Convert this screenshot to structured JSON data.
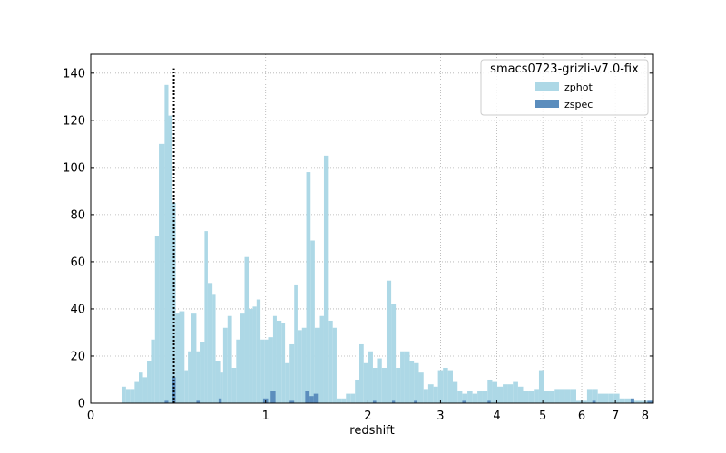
{
  "chart_data": {
    "type": "bar",
    "xlabel": "redshift",
    "ylabel": "",
    "x_scale": "log(1+z)",
    "xlim": [
      0,
      8.3
    ],
    "ylim": [
      0,
      148
    ],
    "x_ticks": [
      0,
      1,
      2,
      3,
      4,
      5,
      6,
      7,
      8
    ],
    "y_ticks": [
      0,
      20,
      40,
      60,
      80,
      100,
      120,
      140
    ],
    "grid": true,
    "legend": {
      "title": "smacs0723-grizli-v7.0-fix",
      "position": "top-right"
    },
    "reference_line": {
      "x": 0.39,
      "style": "dotted",
      "color": "#000000"
    },
    "series": [
      {
        "name": "zphot",
        "color": "#add8e6",
        "x_left": [
          0.13,
          0.15,
          0.17,
          0.19,
          0.21,
          0.23,
          0.25,
          0.27,
          0.29,
          0.31,
          0.34,
          0.36,
          0.38,
          0.4,
          0.42,
          0.45,
          0.47,
          0.49,
          0.52,
          0.54,
          0.57,
          0.59,
          0.62,
          0.64,
          0.67,
          0.69,
          0.72,
          0.75,
          0.78,
          0.81,
          0.84,
          0.87,
          0.9,
          0.93,
          0.96,
          0.99,
          1.02,
          1.06,
          1.09,
          1.13,
          1.16,
          1.2,
          1.24,
          1.27,
          1.31,
          1.35,
          1.39,
          1.43,
          1.48,
          1.52,
          1.56,
          1.61,
          1.65,
          1.7,
          1.75,
          1.8,
          1.85,
          1.9,
          1.95,
          2.0,
          2.06,
          2.11,
          2.17,
          2.23,
          2.29,
          2.35,
          2.41,
          2.47,
          2.54,
          2.6,
          2.67,
          2.74,
          2.81,
          2.89,
          2.96,
          3.04,
          3.12,
          3.2,
          3.28,
          3.36,
          3.45,
          3.54,
          3.63,
          3.72,
          3.82,
          3.91,
          4.01,
          4.12,
          4.22,
          4.33,
          4.44,
          4.55,
          4.67,
          4.79,
          4.91,
          5.03,
          5.16,
          5.29,
          5.42,
          5.56,
          5.7,
          5.85,
          6.0,
          6.15,
          6.3,
          6.46,
          6.62,
          6.79,
          6.96,
          7.13,
          7.31,
          7.5,
          7.68,
          7.88,
          8.08
        ],
        "x_right": [
          0.15,
          0.17,
          0.19,
          0.21,
          0.23,
          0.25,
          0.27,
          0.29,
          0.31,
          0.34,
          0.36,
          0.38,
          0.4,
          0.42,
          0.45,
          0.47,
          0.49,
          0.52,
          0.54,
          0.57,
          0.59,
          0.62,
          0.64,
          0.67,
          0.69,
          0.72,
          0.75,
          0.78,
          0.81,
          0.84,
          0.87,
          0.9,
          0.93,
          0.96,
          0.99,
          1.02,
          1.06,
          1.09,
          1.13,
          1.16,
          1.2,
          1.24,
          1.27,
          1.31,
          1.35,
          1.39,
          1.43,
          1.48,
          1.52,
          1.56,
          1.61,
          1.65,
          1.7,
          1.75,
          1.8,
          1.85,
          1.9,
          1.95,
          2.0,
          2.06,
          2.11,
          2.17,
          2.23,
          2.29,
          2.35,
          2.41,
          2.47,
          2.54,
          2.6,
          2.67,
          2.74,
          2.81,
          2.89,
          2.96,
          3.04,
          3.12,
          3.2,
          3.28,
          3.36,
          3.45,
          3.54,
          3.63,
          3.72,
          3.82,
          3.91,
          4.01,
          4.12,
          4.22,
          4.33,
          4.44,
          4.55,
          4.67,
          4.79,
          4.91,
          5.03,
          5.16,
          5.29,
          5.42,
          5.56,
          5.7,
          5.85,
          6.0,
          6.15,
          6.3,
          6.46,
          6.62,
          6.79,
          6.96,
          7.13,
          7.31,
          7.5,
          7.68,
          7.88,
          8.08,
          8.29
        ],
        "values": [
          7,
          6,
          6,
          9,
          13,
          11,
          18,
          27,
          71,
          110,
          135,
          122,
          85,
          38,
          39,
          14,
          22,
          38,
          22,
          26,
          73,
          51,
          46,
          18,
          13,
          32,
          37,
          15,
          27,
          38,
          62,
          40,
          41,
          44,
          27,
          27,
          28,
          37,
          35,
          34,
          17,
          25,
          50,
          31,
          32,
          98,
          69,
          32,
          37,
          105,
          35,
          32,
          2,
          2,
          4,
          4,
          10,
          25,
          17,
          22,
          15,
          19,
          15,
          52,
          42,
          15,
          22,
          22,
          18,
          17,
          13,
          6,
          8,
          7,
          14,
          15,
          14,
          9,
          5,
          4,
          5,
          4,
          5,
          5,
          10,
          9,
          7,
          8,
          8,
          9,
          7,
          5,
          5,
          6,
          14,
          5,
          5,
          6,
          6,
          6,
          6,
          1,
          1,
          6,
          6,
          4,
          4,
          4,
          4,
          2,
          2,
          1,
          1,
          1,
          1
        ]
      },
      {
        "name": "zspec",
        "color": "#5b8dbd",
        "x_left": [
          0.34,
          0.38,
          0.52,
          0.66,
          0.98,
          1.04,
          1.2,
          1.34,
          1.38,
          1.42,
          2.06,
          2.3,
          2.6,
          3.36,
          3.82,
          6.3,
          7.5,
          8.08
        ],
        "x_right": [
          0.36,
          0.4,
          0.54,
          0.68,
          1.02,
          1.08,
          1.24,
          1.38,
          1.42,
          1.46,
          2.1,
          2.34,
          2.64,
          3.42,
          3.88,
          6.4,
          7.62,
          8.29
        ],
        "values": [
          1,
          11,
          1,
          2,
          2,
          5,
          1,
          5,
          3,
          4,
          1,
          1,
          1,
          1,
          1,
          1,
          2,
          1
        ]
      }
    ]
  }
}
